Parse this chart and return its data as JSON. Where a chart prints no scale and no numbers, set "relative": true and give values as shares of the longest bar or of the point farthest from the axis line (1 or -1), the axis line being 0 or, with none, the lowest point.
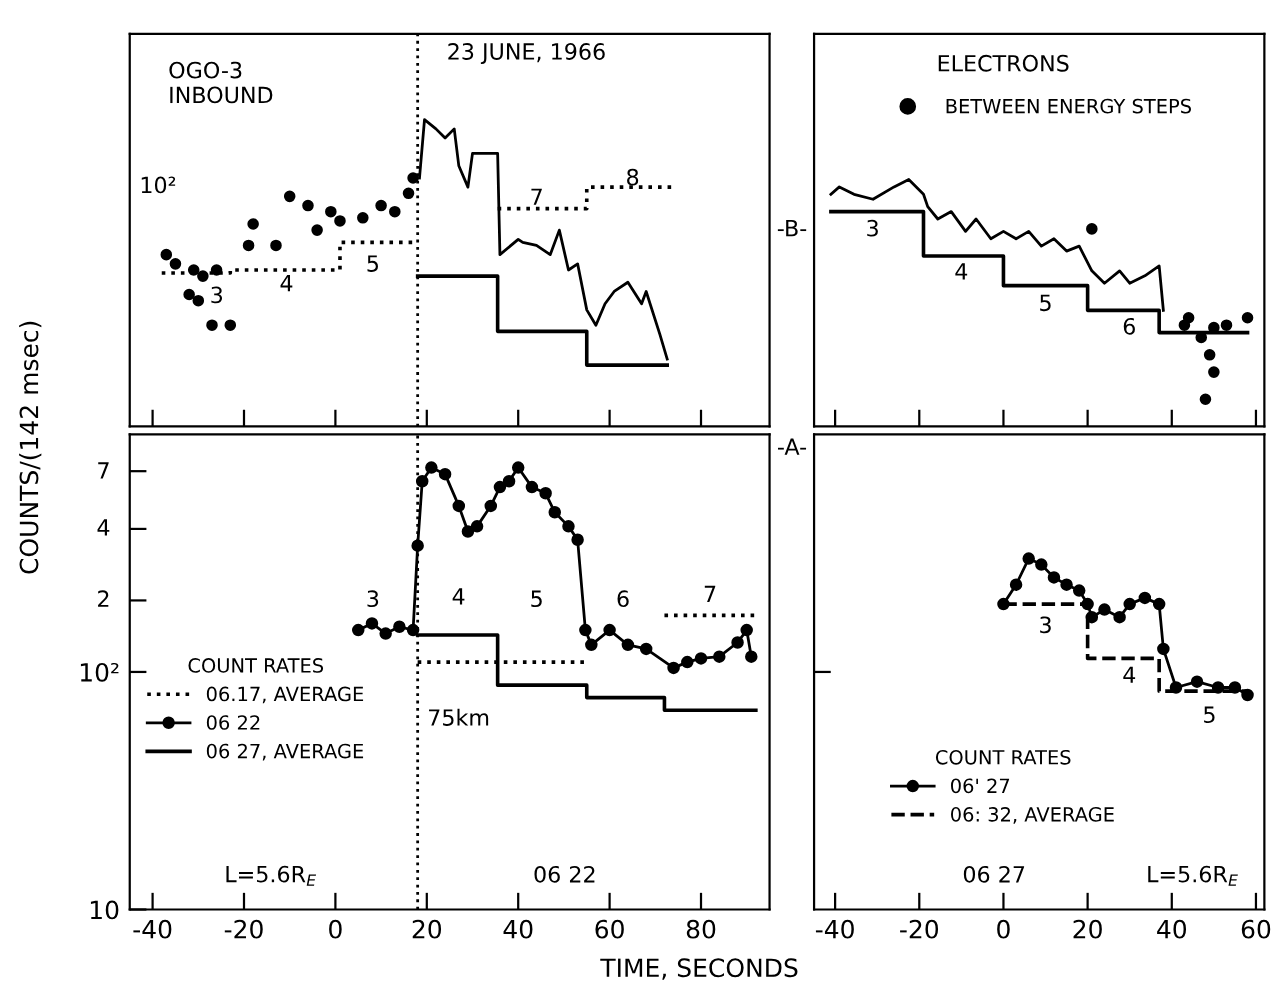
{
  "chart_data": [
    {
      "type": "line",
      "ylabel": "COUNTS/(142 msec)",
      "relative": true,
      "xlim": [
        -45,
        95
      ],
      "xticks": [
        {
          "value": -40,
          "label": null
        },
        {
          "value": -20,
          "label": null
        },
        {
          "value": 0,
          "label": null
        },
        {
          "value": 20,
          "label": null
        },
        {
          "value": 40,
          "label": null
        },
        {
          "value": 60,
          "label": null
        },
        {
          "value": 80,
          "label": null
        }
      ],
      "tick_labels": false,
      "annotations": [
        "OGO-3\nINBOUND",
        "23 JUNE, 1966",
        "10²",
        "3",
        "4",
        "5",
        "7",
        "8"
      ],
      "ref_lines": [
        {
          "axis": "x",
          "value": 18,
          "line_style": "dotted"
        }
      ],
      "series": [
        {
          "type": "scatter",
          "color": "#000000",
          "marker": "circle",
          "x": [
            -37,
            -35,
            -32,
            -30,
            -27,
            -23,
            -31,
            -29,
            -26,
            -19,
            -18,
            -13,
            -10,
            -6,
            -4,
            -1,
            1,
            6,
            10,
            13,
            16,
            17
          ],
          "values": [
            0.56,
            0.53,
            0.43,
            0.41,
            0.33,
            0.33,
            0.51,
            0.49,
            0.51,
            0.59,
            0.66,
            0.59,
            0.75,
            0.72,
            0.64,
            0.7,
            0.67,
            0.68,
            0.72,
            0.7,
            0.76,
            0.81
          ]
        },
        {
          "type": "step",
          "color": "#000000",
          "line_style": "dotted",
          "x": [
            -38,
            -23,
            1,
            18,
            35.5,
            55,
            74
          ],
          "values": [
            0.5,
            0.51,
            0.6,
            null,
            0.71,
            0.78,
            0.78
          ]
        },
        {
          "color": "#000000",
          "x": [
            18.4,
            19.5,
            22,
            24,
            26,
            27,
            29,
            30,
            33,
            35.5,
            36,
            40,
            41,
            44,
            47,
            49,
            51,
            53,
            55,
            57,
            59,
            61,
            64,
            67,
            68,
            71,
            72.6
          ],
          "values": [
            0.81,
            1.0,
            0.97,
            0.94,
            0.97,
            0.85,
            0.78,
            0.89,
            0.89,
            0.89,
            0.56,
            0.61,
            0.6,
            0.59,
            0.56,
            0.64,
            0.51,
            0.53,
            0.38,
            0.33,
            0.4,
            0.44,
            0.47,
            0.4,
            0.44,
            0.3,
            0.22
          ]
        },
        {
          "type": "step",
          "color": "#000000",
          "line_style": "solid",
          "x": [
            18,
            35.5,
            55,
            72.6
          ],
          "values": [
            0.49,
            0.31,
            0.2,
            0.2
          ]
        }
      ]
    },
    {
      "type": "line",
      "relative": true,
      "xlim": [
        -45,
        62
      ],
      "xticks": [
        {
          "value": -40,
          "label": null
        },
        {
          "value": -20,
          "label": null
        },
        {
          "value": 0,
          "label": null
        },
        {
          "value": 20,
          "label": null
        },
        {
          "value": 40,
          "label": null
        },
        {
          "value": 60,
          "label": null
        }
      ],
      "tick_labels": false,
      "legend": "top",
      "annotations": [
        "ELECTRONS",
        "-B-",
        "3",
        "4",
        "5",
        "6"
      ],
      "series": [
        {
          "color": "#000000",
          "x": [
            -41,
            -39,
            -35.5,
            -31,
            -26,
            -22.5,
            -19,
            -18,
            -15.6,
            -12.4,
            -9,
            -6.5,
            -3,
            0,
            3,
            6,
            9,
            12,
            15,
            18,
            21,
            24,
            27.6,
            30,
            33.6,
            37,
            38
          ],
          "values": [
            0.94,
            0.97,
            0.94,
            0.92,
            0.97,
            1.0,
            0.94,
            0.89,
            0.84,
            0.87,
            0.79,
            0.84,
            0.76,
            0.79,
            0.76,
            0.79,
            0.73,
            0.76,
            0.71,
            0.73,
            0.63,
            0.58,
            0.63,
            0.58,
            0.61,
            0.65,
            0.47
          ]
        },
        {
          "type": "scatter",
          "color": "#000000",
          "marker": "circle",
          "x": [
            43,
            44,
            47,
            50,
            53,
            58,
            49,
            50,
            48
          ],
          "values": [
            0.41,
            0.44,
            0.36,
            0.4,
            0.41,
            0.44,
            0.29,
            0.22,
            0.11
          ]
        },
        {
          "type": "step",
          "color": "#000000",
          "line_style": "solid",
          "x": [
            -41,
            -19,
            0,
            20,
            37,
            58
          ],
          "values": [
            0.87,
            0.69,
            0.57,
            0.47,
            0.38,
            0.38
          ]
        },
        {
          "type": "scatter",
          "name": "BETWEEN ENERGY STEPS",
          "color": "#000000",
          "marker": "circle",
          "x": [
            21
          ],
          "values": [
            0.8
          ]
        }
      ]
    },
    {
      "type": "line",
      "xlabel": "TIME, SECONDS",
      "log": true,
      "xlim": [
        -45,
        95
      ],
      "ylim": [
        10,
        1000
      ],
      "xticks": [
        -40,
        -20,
        0,
        20,
        40,
        60,
        80
      ],
      "yticks": [
        10,
        {
          "value": 100,
          "label": "10²"
        },
        {
          "value": 200,
          "label": null
        },
        {
          "value": 400,
          "label": null
        },
        {
          "value": 700,
          "label": null
        }
      ],
      "legend": "left",
      "legend_title": "COUNT RATES",
      "annotations": [
        "L=5.6R$_{E}$",
        "06 22",
        "75km",
        "2",
        "4",
        "7",
        "3",
        "4",
        "5",
        "6",
        "7"
      ],
      "ref_lines": [
        {
          "axis": "x",
          "value": 18,
          "line_style": "dotted"
        }
      ],
      "series": [
        {
          "type": "step",
          "name": "06.17, AVERAGE",
          "color": "#000000",
          "line_style": "dotted",
          "x": [
            18,
            35.5,
            55,
            72,
            92
          ],
          "values": [
            110,
            110,
            null,
            173,
            173
          ]
        },
        {
          "name": "06 22",
          "color": "#000000",
          "marker": "circle",
          "x": [
            5,
            8,
            11,
            14,
            17,
            18,
            19,
            21,
            24,
            27,
            29,
            31,
            34,
            36,
            38,
            40,
            43,
            46,
            48,
            51,
            53,
            54.7,
            56,
            60,
            64,
            68,
            74,
            77,
            80,
            84,
            88,
            90,
            91
          ],
          "values": [
            150,
            160,
            145,
            155,
            150,
            340,
            635,
            725,
            680,
            500,
            390,
            410,
            500,
            600,
            635,
            725,
            600,
            565,
            470,
            410,
            360,
            150,
            130,
            150,
            130,
            125,
            104,
            110,
            114,
            116,
            133,
            150,
            116
          ]
        },
        {
          "type": "step",
          "name": "06 27, AVERAGE",
          "color": "#000000",
          "line_style": "solid",
          "x": [
            18,
            35.5,
            55,
            72,
            92
          ],
          "values": [
            143,
            88,
            78,
            69,
            69
          ]
        }
      ]
    },
    {
      "type": "line",
      "log": true,
      "xlim": [
        -45,
        62
      ],
      "ylim": [
        10,
        1000
      ],
      "xticks": [
        -40,
        -20,
        0,
        20,
        40,
        60
      ],
      "yticks": [
        {
          "value": 100,
          "label": null
        }
      ],
      "tick_labels": "x",
      "legend": "bottom",
      "legend_title": "COUNT RATES",
      "annotations": [
        "06 27",
        "L=5.6R$_{E}$",
        "-A-",
        "3",
        "4",
        "5"
      ],
      "series": [
        {
          "name": "06' 27",
          "color": "#000000",
          "marker": "circle",
          "x": [
            0,
            3,
            6,
            9,
            12,
            15,
            18,
            20,
            21,
            24,
            27.6,
            30,
            33.6,
            37,
            38,
            41,
            46,
            51,
            55,
            58
          ],
          "values": [
            193,
            233,
            300,
            283,
            250,
            233,
            220,
            193,
            170,
            183,
            170,
            193,
            205,
            193,
            125,
            86,
            91,
            86,
            86,
            80
          ]
        },
        {
          "type": "step",
          "name": "06: 32, AVERAGE",
          "color": "#000000",
          "line_style": "dashed",
          "x": [
            0,
            20,
            37,
            58
          ],
          "values": [
            193,
            114,
            83,
            83
          ]
        }
      ]
    }
  ]
}
